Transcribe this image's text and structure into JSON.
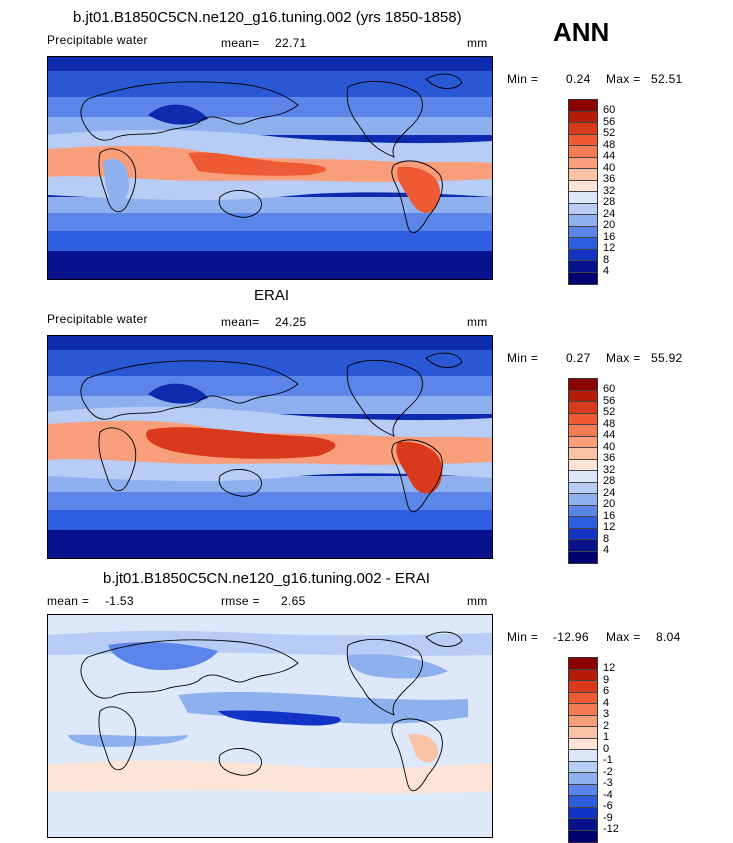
{
  "season": "ANN",
  "panel1": {
    "title": "b.jt01.B1850C5CN.ne120_g16.tuning.002 (yrs 1850-1858)",
    "variable": "Precipitable water",
    "mean_label": "mean=",
    "mean_value": "22.71",
    "units": "mm",
    "min_label": "Min =",
    "min_value": "0.24",
    "max_label": "Max =",
    "max_value": "52.51"
  },
  "panel2": {
    "title": "ERAI",
    "variable": "Precipitable water",
    "mean_label": "mean=",
    "mean_value": "24.25",
    "units": "mm",
    "min_label": "Min =",
    "min_value": "0.27",
    "max_label": "Max =",
    "max_value": "55.92"
  },
  "panel3": {
    "title": "b.jt01.B1850C5CN.ne120_g16.tuning.002 - ERAI",
    "mean_label": "mean =",
    "mean_value": "-1.53",
    "rmse_label": "rmse =",
    "rmse_value": "2.65",
    "units": "mm",
    "min_label": "Min =",
    "min_value": "-12.96",
    "max_label": "Max =",
    "max_value": "8.04"
  },
  "colorbar_abs": {
    "labels": [
      "60",
      "56",
      "52",
      "48",
      "44",
      "40",
      "36",
      "32",
      "28",
      "24",
      "20",
      "16",
      "12",
      "8",
      "4"
    ],
    "colors": [
      "#8b0000",
      "#b41c0c",
      "#d93a1c",
      "#ee5a34",
      "#f47c54",
      "#f89e7a",
      "#fbc2a6",
      "#fde4d6",
      "#dde8fb",
      "#b7cdf5",
      "#8fb0ef",
      "#5b85e8",
      "#2e5edd",
      "#1234c4",
      "#08128c",
      "#000070"
    ]
  },
  "colorbar_diff": {
    "labels": [
      "12",
      "9",
      "6",
      "4",
      "3",
      "2",
      "1",
      "0",
      "-1",
      "-2",
      "-3",
      "-4",
      "-6",
      "-9",
      "-12"
    ],
    "colors": [
      "#8b0000",
      "#b41c0c",
      "#d93a1c",
      "#ee5a34",
      "#f47c54",
      "#f89e7a",
      "#fbc2a6",
      "#fde4d6",
      "#dde8fb",
      "#b7cdf5",
      "#8fb0ef",
      "#5b85e8",
      "#2e5edd",
      "#1234c4",
      "#08128c",
      "#000070"
    ]
  }
}
